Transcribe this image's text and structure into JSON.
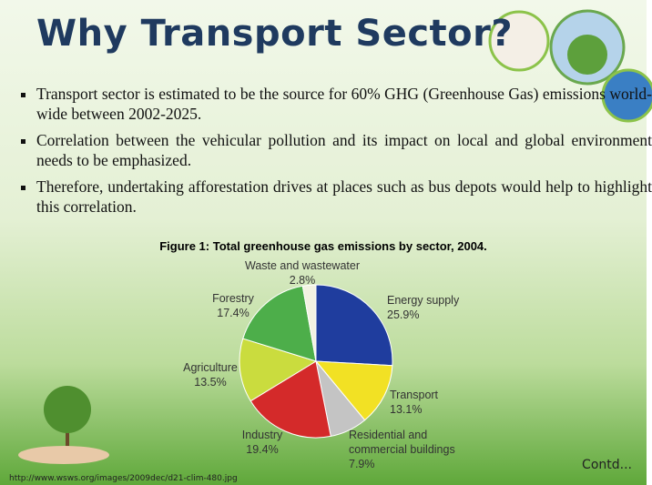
{
  "title": "Why Transport Sector?",
  "bullets": [
    "Transport sector is estimated to be the source for 60% GHG (Greenhouse Gas) emissions world-wide between 2002-2025.",
    "Correlation between the vehicular pollution and its impact on local and global environment needs to be emphasized.",
    "Therefore, undertaking afforestation drives at places such as bus depots would help to highlight this correlation."
  ],
  "chart_data": {
    "type": "pie",
    "title": "Figure 1: Total greenhouse gas emissions by sector, 2004.",
    "categories": [
      "Energy supply",
      "Transport",
      "Residential and commercial buildings",
      "Industry",
      "Agriculture",
      "Forestry",
      "Waste and wastewater"
    ],
    "values": [
      25.9,
      13.1,
      7.9,
      19.4,
      13.5,
      17.4,
      2.8
    ],
    "value_labels": [
      "25.9%",
      "13.1%",
      "7.9%",
      "19.4%",
      "13.5%",
      "17.4%",
      "2.8%"
    ],
    "colors": [
      "#1f3d9e",
      "#f2e124",
      "#c4c4c4",
      "#d42a2a",
      "#cadc3e",
      "#4dae4a",
      "#f2f2e2"
    ]
  },
  "source": "http://www.wsws.org/images/2009dec/d21-clim-480.jpg",
  "continued": "Contd..."
}
